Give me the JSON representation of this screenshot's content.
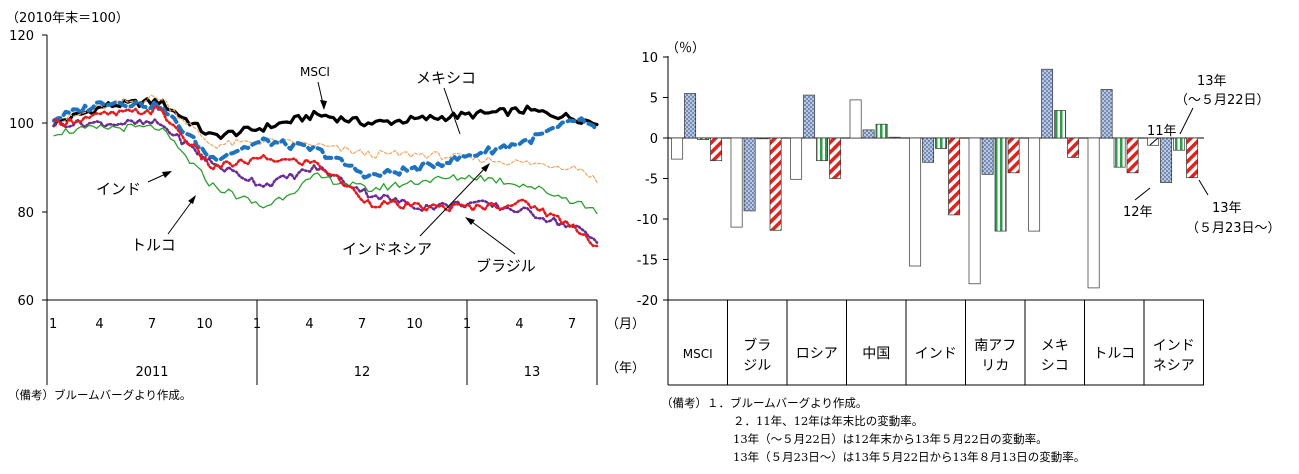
{
  "left_chart": {
    "unit_label": "（2010年末＝100）",
    "y_ticks": [
      "120",
      "100",
      "80",
      "60"
    ],
    "month_ticks": [
      "1",
      "4",
      "7",
      "10",
      "1",
      "4",
      "7",
      "10",
      "1",
      "4",
      "7"
    ],
    "month_unit": "（月）",
    "year_labels": [
      "2011",
      "12",
      "13"
    ],
    "year_unit": "（年）",
    "annotations": {
      "msci": "MSCI",
      "mexico": "メキシコ",
      "india": "インド",
      "turkey": "トルコ",
      "indonesia": "インドネシア",
      "brazil": "ブラジル"
    },
    "note": "（備考）ブルームバーグより作成。"
  },
  "right_chart": {
    "unit_label": "（％）",
    "y_ticks": [
      "10",
      "5",
      "0",
      "-5",
      "-10",
      "-15",
      "-20"
    ],
    "category_labels": [
      [
        "MSCI"
      ],
      [
        "ブラ",
        "ジル"
      ],
      [
        "ロシア"
      ],
      [
        "中国"
      ],
      [
        "インド"
      ],
      [
        "南アフ",
        "リカ"
      ],
      [
        "メキ",
        "シコ"
      ],
      [
        "トルコ"
      ],
      [
        "インド",
        "ネシア"
      ]
    ],
    "legend_labels": {
      "y11": "11年",
      "y12": "12年",
      "y13a_line1": "13年",
      "y13a_line2": "（～５月22日）",
      "y13b_line1": "13年",
      "y13b_line2": "（５月23日～）"
    },
    "notes": [
      "（備考）１．ブルームバーグより作成。",
      "２．11年、12年は年末比の変動率。",
      "13年（～５月22日）は12年末から13年５月22日の変動率。",
      "13年（５月23日～）は13年５月22日から13年８月13日の変動率。"
    ]
  },
  "chart_data": [
    {
      "type": "line",
      "ylim": [
        60,
        120
      ],
      "x": [
        "2011-01",
        "2011-04",
        "2011-07",
        "2011-10",
        "2012-01",
        "2012-04",
        "2012-07",
        "2012-10",
        "2013-01",
        "2013-04",
        "2013-07",
        "2013-08"
      ],
      "series": [
        {
          "name": "MSCI",
          "color": "#000000",
          "style": "solid-thick",
          "values": [
            100,
            104,
            105,
            97,
            99,
            102,
            100,
            101,
            102,
            103,
            101,
            100
          ]
        },
        {
          "name": "",
          "color": "#F4A460",
          "style": "dashed-thin",
          "values": [
            100,
            104,
            106,
            95,
            96,
            95,
            93,
            93,
            92,
            91,
            90,
            87
          ]
        },
        {
          "name": "メキシコ",
          "color": "#1E73BE",
          "style": "dashed-thick",
          "values": [
            101,
            105,
            104,
            92,
            96,
            94,
            88,
            90,
            93,
            96,
            101,
            98
          ]
        },
        {
          "name": "インド",
          "color": "#6A2C91",
          "style": "dotted",
          "values": [
            100,
            100,
            100,
            91,
            86,
            90,
            84,
            81,
            82,
            80,
            76,
            73
          ]
        },
        {
          "name": "トルコ",
          "color": "#2CA02C",
          "style": "solid-thin",
          "values": [
            98,
            99,
            99,
            86,
            81,
            88,
            85,
            87,
            88,
            86,
            82,
            80
          ]
        },
        {
          "name": "ブラジル",
          "color": "#E41A1C",
          "style": "dotted",
          "values": [
            100,
            102,
            103,
            90,
            92,
            91,
            82,
            81,
            81,
            82,
            76,
            72
          ]
        }
      ]
    },
    {
      "type": "bar",
      "ylim": [
        -20,
        10
      ],
      "categories": [
        "MSCI",
        "ブラジル",
        "ロシア",
        "中国",
        "インド",
        "南アフリカ",
        "メキシコ",
        "トルコ",
        "インドネシア"
      ],
      "series": [
        {
          "name": "11年",
          "values": [
            -2.6,
            -11.0,
            -5.1,
            4.7,
            -15.8,
            -18.0,
            -11.5,
            -18.5,
            -0.9
          ]
        },
        {
          "name": "12年",
          "values": [
            5.5,
            -9.0,
            5.3,
            1.0,
            -3.0,
            -4.5,
            8.5,
            6.0,
            -5.5
          ]
        },
        {
          "name": "13年（～５月22日）",
          "values": [
            -0.2,
            -0.1,
            -2.8,
            1.7,
            -1.3,
            -11.5,
            3.4,
            -3.6,
            -1.5
          ]
        },
        {
          "name": "13年（５月23日～）",
          "values": [
            -2.8,
            -11.4,
            -5.0,
            0.1,
            -9.5,
            -4.3,
            -2.4,
            -4.3,
            -4.9
          ]
        }
      ]
    }
  ]
}
